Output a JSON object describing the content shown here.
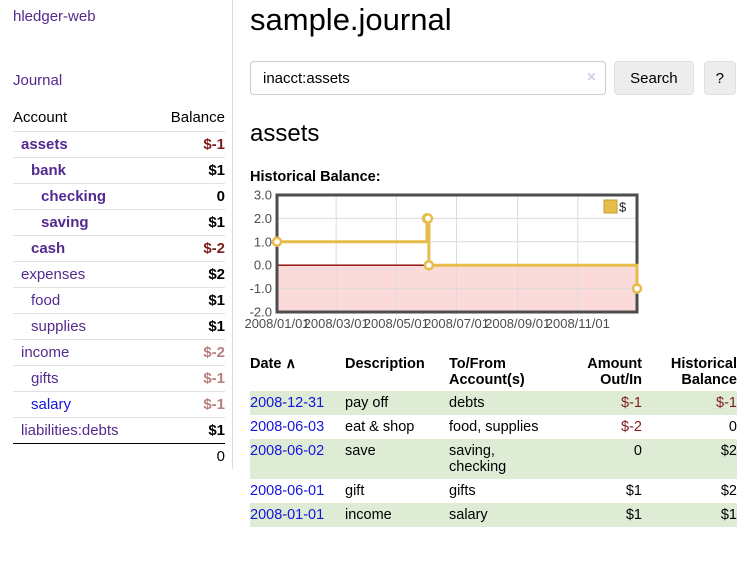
{
  "colors": {
    "link_purple": "#542a8f",
    "link_blue": "#1414dd",
    "negative_strong": "#7f1c1c",
    "negative_muted": "#b97e7e",
    "row_green": "#deecd5",
    "chart_line_gold": "#e6bc4a",
    "chart_negative_area": "#fbdada",
    "chart_zero_line": "#8b0000",
    "chart_grid": "#dcdcdc",
    "chart_border": "#4d4d4d"
  },
  "icons": {
    "clear_search": "×",
    "sort_ascending": "∧",
    "legend_swatch": "$"
  },
  "sidebar": {
    "app_title": "hledger-web",
    "journal_link": "Journal",
    "accounts_header": {
      "account": "Account",
      "balance": "Balance"
    },
    "accounts": [
      {
        "name": "assets",
        "depth": 0,
        "bold": true,
        "balance": "$-1",
        "neg": "strong"
      },
      {
        "name": "bank",
        "depth": 1,
        "bold": true,
        "balance": "$1"
      },
      {
        "name": "checking",
        "depth": 2,
        "bold": true,
        "balance": "0"
      },
      {
        "name": "saving",
        "depth": 2,
        "bold": true,
        "balance": "$1"
      },
      {
        "name": "cash",
        "depth": 1,
        "bold": true,
        "balance": "$-2",
        "neg": "strong"
      },
      {
        "name": "expenses",
        "depth": 0,
        "bold": false,
        "balance": "$2"
      },
      {
        "name": "food",
        "depth": 1,
        "bold": false,
        "balance": "$1"
      },
      {
        "name": "supplies",
        "depth": 1,
        "bold": false,
        "balance": "$1"
      },
      {
        "name": "income",
        "depth": 0,
        "bold": false,
        "balance": "$-2",
        "neg": "muted"
      },
      {
        "name": "gifts",
        "depth": 1,
        "bold": false,
        "balance": "$-1",
        "neg": "muted"
      },
      {
        "name": "salary",
        "depth": 1,
        "bold": false,
        "balance": "$-1",
        "neg": "muted",
        "unvisited": true
      },
      {
        "name": "liabilities:debts",
        "depth": 0,
        "bold": false,
        "balance": "$1"
      }
    ],
    "total": "0"
  },
  "main": {
    "title": "sample.journal",
    "search": {
      "value": "inacct:assets",
      "button": "Search",
      "help": "?"
    },
    "account_heading": "assets"
  },
  "chart_data": {
    "type": "line",
    "step": true,
    "title": "Historical Balance:",
    "series": [
      {
        "name": "$",
        "points": [
          [
            "2008-01-01",
            1
          ],
          [
            "2008-06-01",
            2
          ],
          [
            "2008-06-02",
            2
          ],
          [
            "2008-06-03",
            0
          ],
          [
            "2008-12-31",
            -1
          ]
        ]
      }
    ],
    "xdomain": [
      "2008-01-01",
      "2008-12-31"
    ],
    "ylim": [
      -2,
      3
    ],
    "yticks": [
      3,
      2,
      1,
      0,
      -1,
      -2
    ],
    "ytick_labels": [
      "3.0",
      "2.0",
      "1.0",
      "0.0",
      "-1.0",
      "-2.0"
    ],
    "xticks": [
      "2008/01/01",
      "2008/03/01",
      "2008/05/01",
      "2008/07/01",
      "2008/09/01",
      "2008/11/01"
    ],
    "grid": true,
    "legend": {
      "label": "$",
      "position": "top-right"
    },
    "negative_region_shaded": true
  },
  "table": {
    "headers": [
      "Date",
      "Description",
      "To/From Account(s)",
      "Amount Out/In",
      "Historical Balance"
    ],
    "sort_column": "Date",
    "sort_direction": "ascending",
    "rows": [
      {
        "date": "2008-12-31",
        "description": "pay off",
        "accounts": "debts",
        "amount": "$-1",
        "balance": "$-1"
      },
      {
        "date": "2008-06-03",
        "description": "eat & shop",
        "accounts": "food, supplies",
        "amount": "$-2",
        "balance": "0"
      },
      {
        "date": "2008-06-02",
        "description": "save",
        "accounts": "saving, checking",
        "amount": "0",
        "balance": "$2"
      },
      {
        "date": "2008-06-01",
        "description": "gift",
        "accounts": "gifts",
        "amount": "$1",
        "balance": "$2"
      },
      {
        "date": "2008-01-01",
        "description": "income",
        "accounts": "salary",
        "amount": "$1",
        "balance": "$1"
      }
    ]
  }
}
